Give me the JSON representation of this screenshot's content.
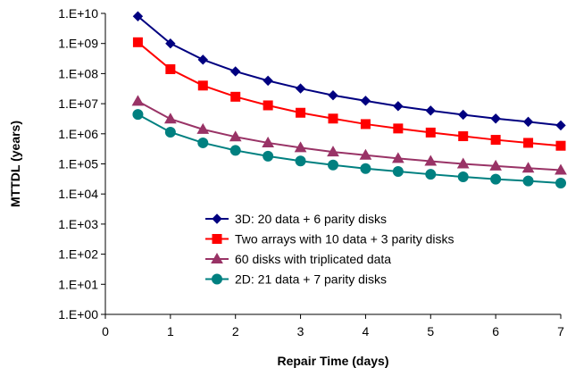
{
  "chart_data": {
    "type": "line",
    "title": "",
    "xlabel": "Repair Time (days)",
    "ylabel": "MTTDL (years)",
    "xlim": [
      0,
      7
    ],
    "ylim": [
      1,
      10000000000
    ],
    "y_scale": "log",
    "grid": false,
    "legend_position": "bottom-right",
    "x_ticks": [
      "0",
      "1",
      "2",
      "3",
      "4",
      "5",
      "6",
      "7"
    ],
    "y_ticks": [
      "1.E+00",
      "1.E+01",
      "1.E+02",
      "1.E+03",
      "1.E+04",
      "1.E+05",
      "1.E+06",
      "1.E+07",
      "1.E+08",
      "1.E+09",
      "1.E+10"
    ],
    "x": [
      0.5,
      1,
      1.5,
      2,
      2.5,
      3,
      3.5,
      4,
      4.5,
      5,
      5.5,
      6,
      6.5,
      7
    ],
    "series": [
      {
        "name": "3D: 20 data + 6 parity disks",
        "color": "#000080",
        "marker": "diamond",
        "values": [
          8000000000,
          1000000000,
          290000000,
          118000000,
          58000000,
          32000000,
          19000000,
          12500000,
          8300000,
          5900000,
          4300000,
          3200000,
          2500000,
          1900000
        ]
      },
      {
        "name": "Two arrays with 10 data + 3 parity disks",
        "color": "#ff0000",
        "marker": "square",
        "values": [
          1100000000,
          140000000,
          40000000,
          17000000,
          8800000,
          5000000,
          3200000,
          2100000,
          1500000,
          1100000,
          830000,
          630000,
          500000,
          400000
        ]
      },
      {
        "name": "60 disks with triplicated data",
        "color": "#993366",
        "marker": "triangle",
        "values": [
          12000000,
          3100000,
          1400000,
          790000,
          500000,
          345000,
          250000,
          195000,
          152000,
          123000,
          100000,
          85000,
          72000,
          62000
        ]
      },
      {
        "name": "2D: 21 data + 7 parity disks",
        "color": "#008080",
        "marker": "circle",
        "values": [
          4400000,
          1130000,
          500000,
          280000,
          180000,
          125000,
          92000,
          70000,
          56000,
          45000,
          37000,
          31000,
          27000,
          23000
        ]
      }
    ]
  }
}
